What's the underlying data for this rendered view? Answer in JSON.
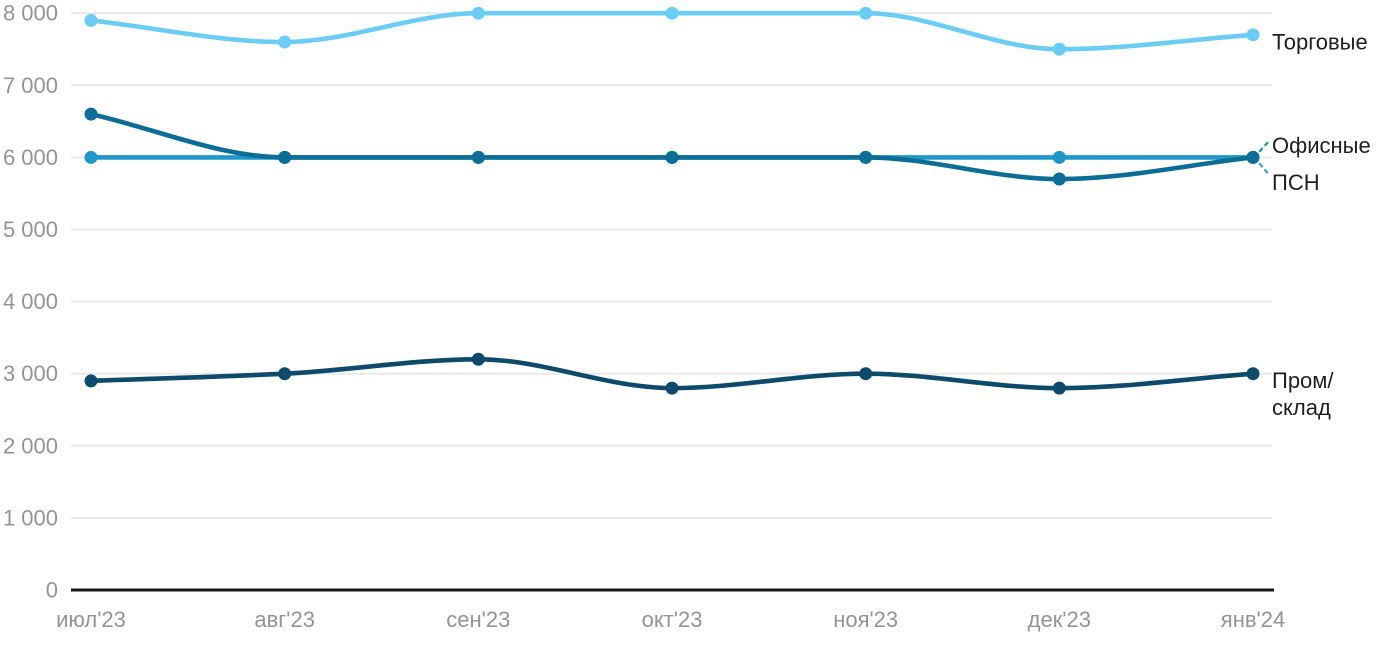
{
  "chart_data": {
    "type": "line",
    "title": "",
    "xlabel": "",
    "ylabel": "",
    "ylim": [
      0,
      8000
    ],
    "ytick_step": 1000,
    "grid": true,
    "legend_position": "right-end-of-lines",
    "categories": [
      "июл'23",
      "авг'23",
      "сен'23",
      "окт'23",
      "ноя'23",
      "дек'23",
      "янв'24"
    ],
    "yticks": [
      {
        "value": 0,
        "label": "0"
      },
      {
        "value": 1000,
        "label": "1 000"
      },
      {
        "value": 2000,
        "label": "2 000"
      },
      {
        "value": 3000,
        "label": "3 000"
      },
      {
        "value": 4000,
        "label": "4 000"
      },
      {
        "value": 5000,
        "label": "5 000"
      },
      {
        "value": 6000,
        "label": "6 000"
      },
      {
        "value": 7000,
        "label": "7 000"
      },
      {
        "value": 8000,
        "label": "8 000"
      }
    ],
    "series": [
      {
        "id": "torgovye",
        "name": "Торговые",
        "label_lines": [
          "Торговые"
        ],
        "color": "#6bcdf4",
        "values": [
          7900,
          7600,
          8000,
          8000,
          8000,
          7500,
          7700
        ]
      },
      {
        "id": "ofisnye",
        "name": "Офисные",
        "label_lines": [
          "Офисные"
        ],
        "color": "#1f97c9",
        "values": [
          6000,
          6000,
          6000,
          6000,
          6000,
          6000,
          6000
        ]
      },
      {
        "id": "psn",
        "name": "ПСН",
        "label_lines": [
          "ПСН"
        ],
        "color": "#0c6d97",
        "values": [
          6600,
          6000,
          6000,
          6000,
          6000,
          5700,
          6000
        ]
      },
      {
        "id": "prom-sklad",
        "name": "Пром/склад",
        "label_lines": [
          "Пром/",
          "склад"
        ],
        "color": "#0e4a6b",
        "values": [
          2900,
          3000,
          3200,
          2800,
          3000,
          2800,
          3000
        ]
      }
    ],
    "colors": {
      "axis": "#161616",
      "grid": "#e9e9e9",
      "tick_text": "#949494",
      "label_text": "#1f1f1f",
      "connector_upper": "#2097c9",
      "connector_lower": "#46a9d6",
      "background": "#ffffff"
    }
  }
}
